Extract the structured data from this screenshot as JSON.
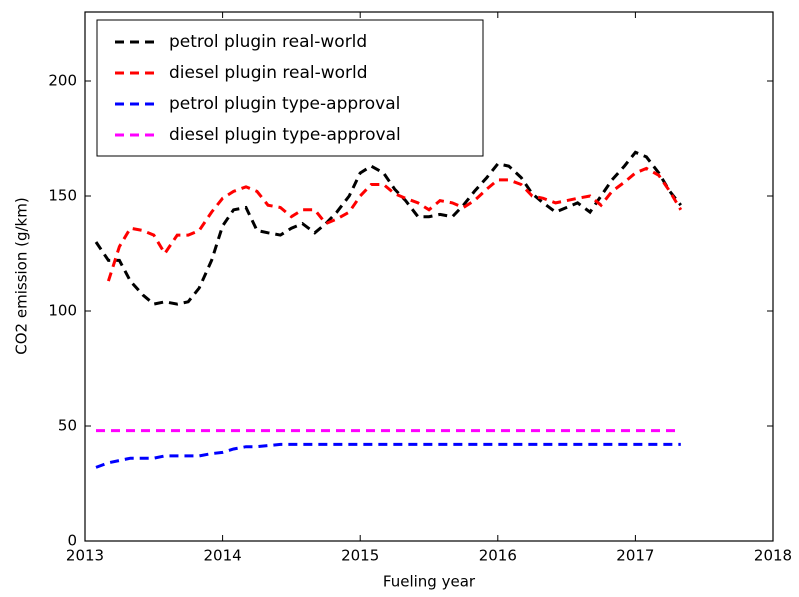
{
  "chart_data": {
    "type": "line",
    "xlabel": "Fueling year",
    "ylabel": "CO2 emission (g/km)",
    "x": [
      2013.08,
      2013.17,
      2013.25,
      2013.33,
      2013.42,
      2013.5,
      2013.58,
      2013.67,
      2013.75,
      2013.83,
      2013.92,
      2014.0,
      2014.08,
      2014.17,
      2014.25,
      2014.33,
      2014.42,
      2014.5,
      2014.58,
      2014.67,
      2014.75,
      2014.83,
      2014.92,
      2015.0,
      2015.08,
      2015.17,
      2015.25,
      2015.33,
      2015.42,
      2015.5,
      2015.58,
      2015.67,
      2015.75,
      2015.83,
      2015.92,
      2016.0,
      2016.08,
      2016.17,
      2016.25,
      2016.33,
      2016.42,
      2016.5,
      2016.58,
      2016.67,
      2016.75,
      2016.83,
      2016.92,
      2017.0,
      2017.08,
      2017.17,
      2017.25,
      2017.33
    ],
    "series": [
      {
        "name": "petrol plugin real-world",
        "color": "#000000",
        "values": [
          130,
          122,
          122,
          113,
          107,
          103,
          104,
          103,
          104,
          110,
          122,
          137,
          144,
          145,
          135,
          134,
          133,
          136,
          138,
          134,
          138,
          143,
          150,
          160,
          163,
          160,
          153,
          148,
          141,
          141,
          142,
          141,
          146,
          152,
          158,
          164,
          163,
          158,
          151,
          147,
          143,
          145,
          147,
          143,
          150,
          157,
          163,
          169,
          167,
          160,
          152,
          146
        ]
      },
      {
        "name": "diesel plugin real-world",
        "color": "#ff0000",
        "values": [
          null,
          113,
          128,
          136,
          135,
          133,
          125,
          133,
          133,
          135,
          143,
          149,
          152,
          154,
          152,
          146,
          145,
          141,
          144,
          144,
          138,
          140,
          143,
          150,
          155,
          155,
          151,
          149,
          147,
          144,
          148,
          147,
          145,
          148,
          153,
          157,
          157,
          155,
          150,
          149,
          147,
          148,
          149,
          150,
          146,
          152,
          156,
          160,
          162,
          159,
          152,
          144
        ]
      },
      {
        "name": "petrol plugin type-approval",
        "color": "#0000ff",
        "values": [
          32,
          34,
          35,
          36,
          36,
          36,
          37,
          37,
          37,
          37,
          38,
          38.5,
          40,
          41,
          41,
          41.5,
          42,
          42,
          42,
          42,
          42,
          42,
          42,
          42,
          42,
          42,
          42,
          42,
          42,
          42,
          42,
          42,
          42,
          42,
          42,
          42,
          42,
          42,
          42,
          42,
          42,
          42,
          42,
          42,
          42,
          42,
          42,
          42,
          42,
          42,
          42,
          42
        ]
      },
      {
        "name": "diesel plugin type-approval",
        "color": "#ff00ff",
        "values": [
          48,
          48,
          48,
          48,
          48,
          48,
          48,
          48,
          48,
          48,
          48,
          48,
          48,
          48,
          48,
          48,
          48,
          48,
          48,
          48,
          48,
          48,
          48,
          48,
          48,
          48,
          48,
          48,
          48,
          48,
          48,
          48,
          48,
          48,
          48,
          48,
          48,
          48,
          48,
          48,
          48,
          48,
          48,
          48,
          48,
          48,
          48,
          48,
          48,
          48,
          48,
          48
        ]
      }
    ],
    "xlim": [
      2013,
      2018
    ],
    "xticks": [
      2013,
      2014,
      2015,
      2016,
      2017,
      2018
    ],
    "ylim": [
      0,
      230
    ],
    "yticks": [
      0,
      50,
      100,
      150,
      200
    ],
    "grid": false,
    "legend": "upper-left"
  }
}
